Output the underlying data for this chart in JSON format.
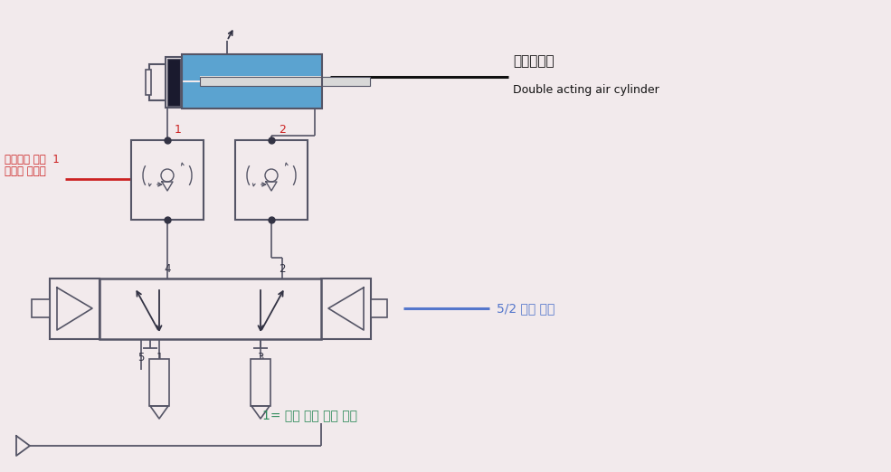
{
  "bg_color": "#f2eaec",
  "cylinder_label_korean": "복동실린더",
  "cylinder_label_english": "Double acting air cylinder",
  "valve_label": "5/2 복동 밸브",
  "speed_control_label1": "체크밸브 내장  1",
  "speed_control_label2": "스피드 콘트롤",
  "air_supply_label": "1= 공급 되는 압축 공기",
  "line_color": "#555566",
  "blue_color": "#5ba3d0",
  "red_color": "#cc2222",
  "green_color": "#2e8b5a",
  "valve_blue": "#5577cc",
  "dark_color": "#333344"
}
